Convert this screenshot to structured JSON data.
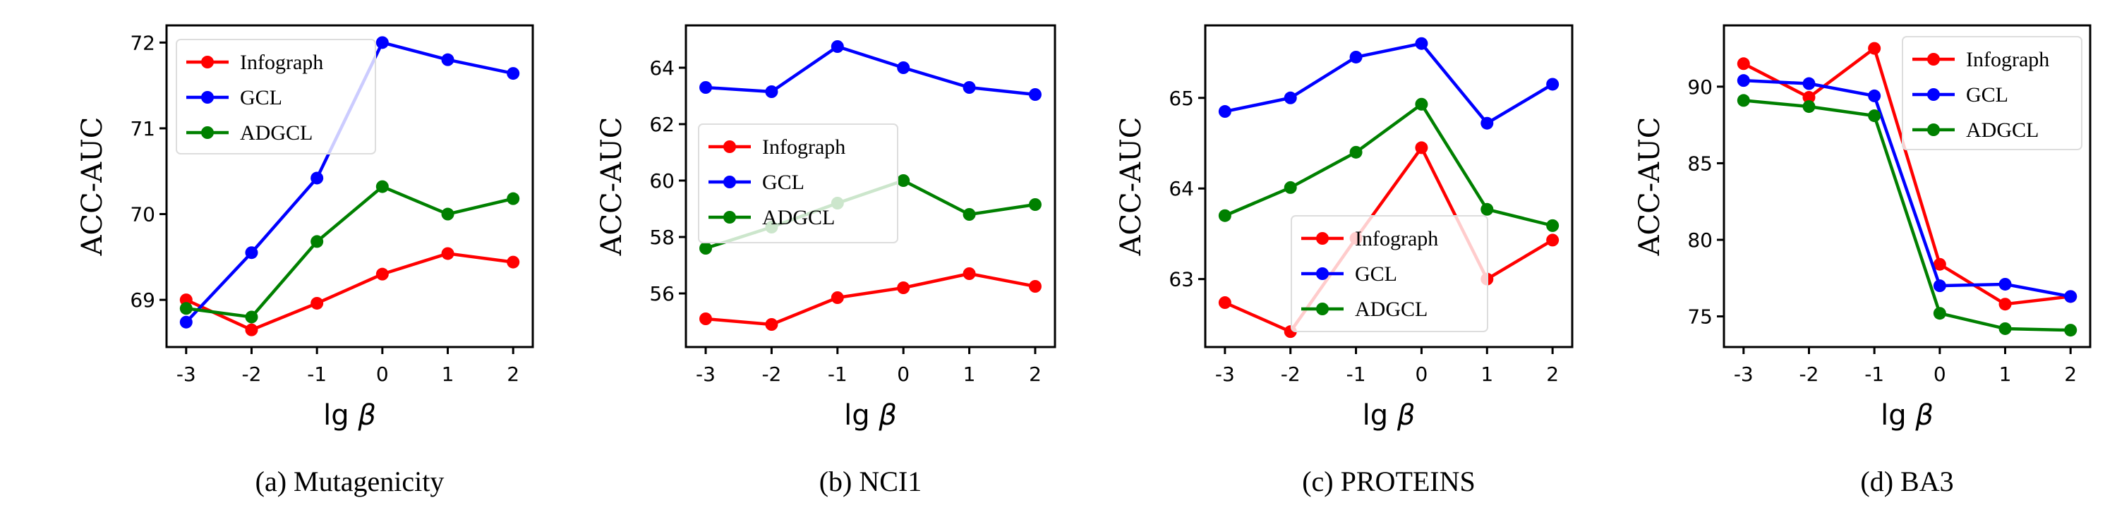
{
  "chart_data": [
    {
      "type": "line",
      "caption": "(a) Mutagenicity",
      "xlabel": "lg",
      "xlabel_symbol": "β",
      "ylabel": "ACC-AUC",
      "categories": [
        "-3",
        "-2",
        "-1",
        "0",
        "1",
        "2"
      ],
      "xlim": [
        -3.3,
        2.3
      ],
      "ylim": [
        68.45,
        72.2
      ],
      "yticks": [
        69,
        70,
        71,
        72
      ],
      "legend_position": "top-left",
      "series": [
        {
          "name": "Infograph",
          "color": "#ff0000",
          "values": [
            69.0,
            68.65,
            68.96,
            69.3,
            69.54,
            69.44
          ]
        },
        {
          "name": "GCL",
          "color": "#0000ff",
          "values": [
            68.74,
            69.55,
            70.42,
            72.0,
            71.8,
            71.64
          ]
        },
        {
          "name": "ADGCL",
          "color": "#008000",
          "values": [
            68.9,
            68.8,
            69.68,
            70.32,
            70.0,
            70.18
          ]
        }
      ]
    },
    {
      "type": "line",
      "caption": "(b) NCI1",
      "xlabel": "lg",
      "xlabel_symbol": "β",
      "ylabel": "ACC-AUC",
      "categories": [
        "-3",
        "-2",
        "-1",
        "0",
        "1",
        "2"
      ],
      "xlim": [
        -3.3,
        2.3
      ],
      "ylim": [
        54.1,
        65.5
      ],
      "yticks": [
        56,
        58,
        60,
        62,
        64
      ],
      "legend_position": "center-left",
      "series": [
        {
          "name": "Infograph",
          "color": "#ff0000",
          "values": [
            55.1,
            54.9,
            55.85,
            56.2,
            56.7,
            56.25
          ]
        },
        {
          "name": "GCL",
          "color": "#0000ff",
          "values": [
            63.3,
            63.15,
            64.75,
            64.0,
            63.3,
            63.05
          ]
        },
        {
          "name": "ADGCL",
          "color": "#008000",
          "values": [
            57.6,
            58.35,
            59.2,
            60.0,
            58.8,
            59.15
          ]
        }
      ]
    },
    {
      "type": "line",
      "caption": "(c) PROTEINS",
      "xlabel": "lg",
      "xlabel_symbol": "β",
      "ylabel": "ACC-AUC",
      "categories": [
        "-3",
        "-2",
        "-1",
        "0",
        "1",
        "2"
      ],
      "xlim": [
        -3.3,
        2.3
      ],
      "ylim": [
        62.25,
        65.8
      ],
      "yticks": [
        63,
        64,
        65
      ],
      "legend_position": "lower-center",
      "series": [
        {
          "name": "Infograph",
          "color": "#ff0000",
          "values": [
            62.74,
            62.42,
            63.45,
            64.45,
            63.0,
            63.43
          ]
        },
        {
          "name": "GCL",
          "color": "#0000ff",
          "values": [
            64.85,
            65.0,
            65.45,
            65.6,
            64.72,
            65.15
          ]
        },
        {
          "name": "ADGCL",
          "color": "#008000",
          "values": [
            63.7,
            64.01,
            64.4,
            64.93,
            63.77,
            63.59
          ]
        }
      ]
    },
    {
      "type": "line",
      "caption": "(d) BA3",
      "xlabel": "lg",
      "xlabel_symbol": "β",
      "ylabel": "ACC-AUC",
      "categories": [
        "-3",
        "-2",
        "-1",
        "0",
        "1",
        "2"
      ],
      "xlim": [
        -3.3,
        2.3
      ],
      "ylim": [
        73.0,
        94.0
      ],
      "yticks": [
        75,
        80,
        85,
        90
      ],
      "legend_position": "top-right",
      "series": [
        {
          "name": "Infograph",
          "color": "#ff0000",
          "values": [
            91.5,
            89.3,
            92.5,
            78.4,
            75.8,
            76.3
          ]
        },
        {
          "name": "GCL",
          "color": "#0000ff",
          "values": [
            90.4,
            90.2,
            89.4,
            77.0,
            77.1,
            76.3
          ]
        },
        {
          "name": "ADGCL",
          "color": "#008000",
          "values": [
            89.1,
            88.7,
            88.1,
            75.2,
            74.2,
            74.1
          ]
        }
      ]
    }
  ]
}
